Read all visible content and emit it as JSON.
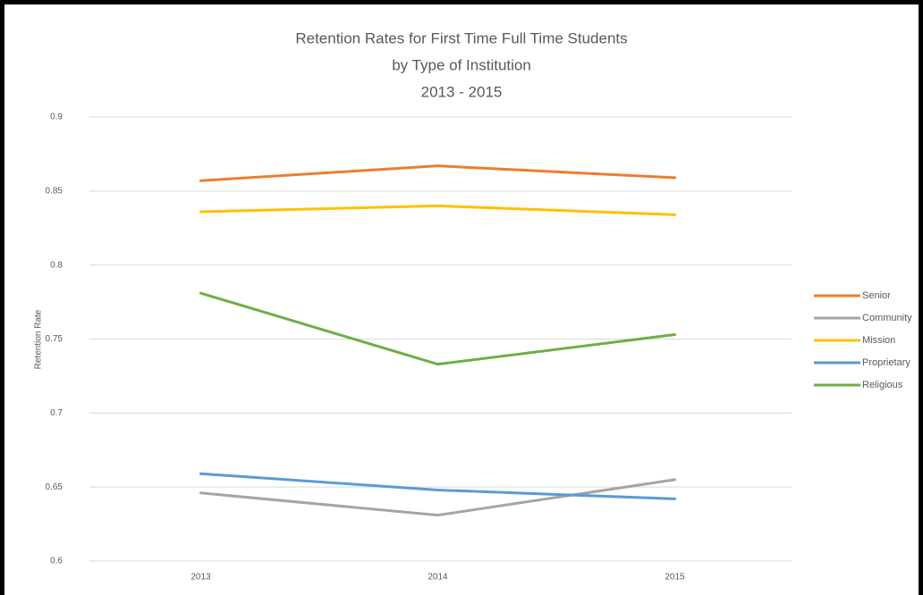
{
  "chart_data": {
    "type": "line",
    "title": [
      "Retention Rates for First Time Full Time Students",
      "by Type of Institution",
      "2013 - 2015"
    ],
    "y_label": "Retention Rate",
    "categories": [
      "2013",
      "2014",
      "2015"
    ],
    "series": [
      {
        "name": "Senior",
        "color": "#ED7D31",
        "values": [
          0.857,
          0.867,
          0.859
        ]
      },
      {
        "name": "Community",
        "color": "#A5A5A5",
        "values": [
          0.646,
          0.631,
          0.655
        ]
      },
      {
        "name": "Mission",
        "color": "#FFC000",
        "values": [
          0.836,
          0.84,
          0.834
        ]
      },
      {
        "name": "Proprietary",
        "color": "#5B9BD5",
        "values": [
          0.659,
          0.648,
          0.642
        ]
      },
      {
        "name": "Religious",
        "color": "#70AD47",
        "values": [
          0.781,
          0.733,
          0.753
        ]
      }
    ],
    "ylim": [
      0.6,
      0.9
    ],
    "yticks": [
      0.6,
      0.65,
      0.7,
      0.75,
      0.8,
      0.85,
      0.9
    ],
    "grid": true,
    "legend": "right"
  }
}
